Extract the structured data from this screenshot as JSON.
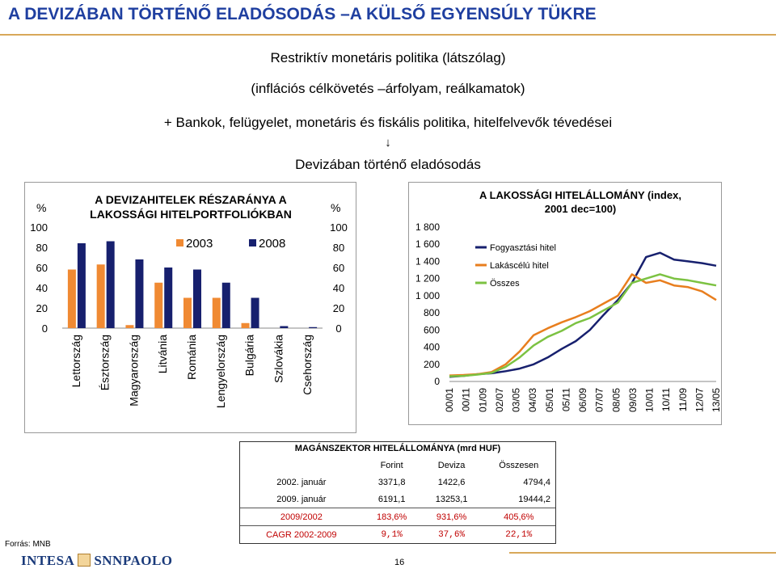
{
  "title": "A DEVIZÁBAN TÖRTÉNŐ ELADÓSODÁS –A KÜLSŐ EGYENSÚLY TÜKRE",
  "lines": [
    "Restriktív  monetáris politika (látszólag)",
    "(inflációs célkövetés –árfolyam, reálkamatok)",
    "+ Bankok, felügyelet, monetáris és fiskális politika, hitelfelvevők tévedései",
    "↓",
    "Devizában történő eladósodás"
  ],
  "chart_data": [
    {
      "type": "bar",
      "title": "A DEVIZAHITELEK RÉSZARÁNYA A LAKOSSÁGI HITELPORTFOLIÓKBAN",
      "ylabel_left": "%",
      "ylabel_right": "%",
      "ylim": [
        0,
        100
      ],
      "yticks": [
        "0",
        "20",
        "40",
        "60",
        "80",
        "100"
      ],
      "categories": [
        "Lettország",
        "Észtország",
        "Magyarország",
        "Litvánia",
        "Románia",
        "Lengyelország",
        "Bulgária",
        "Szlovákia",
        "Csehország"
      ],
      "series": [
        {
          "name": "2003",
          "color": "#f08a33",
          "values": [
            58,
            63,
            3,
            45,
            30,
            30,
            5,
            0,
            0
          ]
        },
        {
          "name": "2008",
          "color": "#17206e",
          "values": [
            84,
            86,
            68,
            60,
            58,
            45,
            30,
            2,
            1
          ]
        }
      ],
      "legend": "top"
    },
    {
      "type": "line",
      "title": "A LAKOSSÁGI HITELÁLLOMÁNY (index, 2001 dec=100)",
      "ylim": [
        0,
        1800
      ],
      "yticks": [
        "0",
        "200",
        "400",
        "600",
        "800",
        "1 000",
        "1 200",
        "1 400",
        "1 600",
        "1 800"
      ],
      "xticks": [
        "00/01",
        "00/11",
        "01/09",
        "02/07",
        "03/05",
        "04/03",
        "05/01",
        "05/11",
        "06/09",
        "07/07",
        "08/05",
        "09/03",
        "10/01",
        "10/11",
        "11/09",
        "12/07",
        "13/05"
      ],
      "legend": "top-left",
      "series": [
        {
          "name": "Fogyasztási hitel",
          "color": "#17206e",
          "values": [
            55,
            65,
            85,
            95,
            120,
            150,
            200,
            280,
            380,
            470,
            600,
            780,
            950,
            1150,
            1450,
            1500,
            1420,
            1400,
            1380,
            1350
          ]
        },
        {
          "name": "Lakáscélú hitel",
          "color": "#e87e1e",
          "values": [
            70,
            75,
            85,
            110,
            200,
            350,
            540,
            620,
            690,
            750,
            820,
            910,
            1000,
            1250,
            1150,
            1180,
            1120,
            1100,
            1050,
            950
          ]
        },
        {
          "name": "Összes",
          "color": "#7cc242",
          "values": [
            60,
            65,
            80,
            100,
            170,
            280,
            420,
            520,
            590,
            680,
            740,
            830,
            920,
            1150,
            1200,
            1250,
            1200,
            1180,
            1150,
            1120
          ]
        }
      ]
    }
  ],
  "table": {
    "caption": "MAGÁNSZEKTOR HITELÁLLOMÁNYA (mrd HUF)",
    "headers": [
      "",
      "Forint",
      "Deviza",
      "Összesen"
    ],
    "rows": [
      [
        "2002. január",
        "3371,8",
        "1422,6",
        "4794,4"
      ],
      [
        "2009. január",
        "6191,1",
        "13253,1",
        "19444,2"
      ],
      [
        "2009/2002",
        "183,6%",
        "931,6%",
        "405,6%"
      ],
      [
        "CAGR 2002-2009",
        "9,1%",
        "37,6%",
        "22,1%"
      ]
    ]
  },
  "source": "Forrás: MNB",
  "logo_text": "INTESA SANPAOLO",
  "logo_left": "INTESA",
  "logo_right": "SNNPAOLO",
  "page_number": "16"
}
